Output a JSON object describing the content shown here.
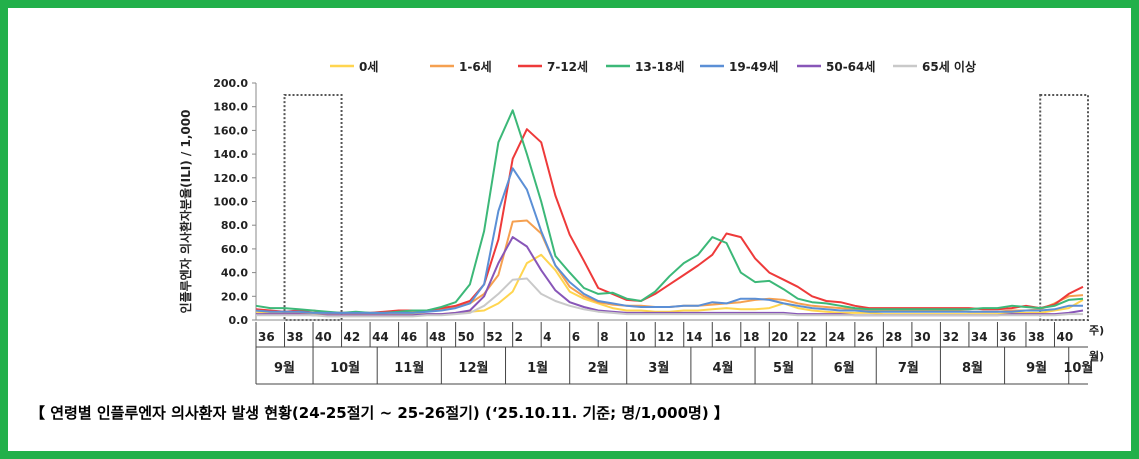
{
  "caption": "【 연령별 인플루엔자 의사환자 발생 현황(24-25절기 ~ 25-26절기) (‘25.10.11. 기준; 명/1,000명) 】",
  "chart_data": {
    "type": "line",
    "ylabel": "인플루엔자 의사환자분율(ILI) / 1,000",
    "ylim": [
      0,
      200
    ],
    "yticks": [
      "0.0",
      "20.0",
      "40.0",
      "60.0",
      "80.0",
      "100.0",
      "120.0",
      "140.0",
      "160.0",
      "180.0",
      "200.0"
    ],
    "x_unit_week": "주)",
    "x_unit_month": "월)",
    "week_ticks": [
      "36",
      "38",
      "40",
      "42",
      "44",
      "46",
      "48",
      "50",
      "52",
      "2",
      "4",
      "6",
      "8",
      "10",
      "12",
      "14",
      "16",
      "18",
      "20",
      "22",
      "24",
      "26",
      "28",
      "30",
      "32",
      "34",
      "36",
      "38",
      "40"
    ],
    "months": [
      "9월",
      "10월",
      "11월",
      "12월",
      "1월",
      "2월",
      "3월",
      "4월",
      "5월",
      "6월",
      "7월",
      "8월",
      "9월",
      "10월"
    ],
    "month_spans": [
      [
        0,
        4
      ],
      [
        4,
        8.5
      ],
      [
        8.5,
        13
      ],
      [
        13,
        17.5
      ],
      [
        17.5,
        22
      ],
      [
        22,
        26
      ],
      [
        26,
        30.5
      ],
      [
        30.5,
        35
      ],
      [
        35,
        39
      ],
      [
        39,
        43.5
      ],
      [
        43.5,
        48
      ],
      [
        48,
        52.5
      ],
      [
        52.5,
        57
      ],
      [
        57,
        59
      ]
    ],
    "week_count": 59,
    "highlight_ranges": [
      [
        2,
        6
      ],
      [
        55,
        59
      ]
    ],
    "legend_position": "top",
    "series": [
      {
        "name": "0세",
        "color": "#ffd54f",
        "values": [
          7,
          6,
          6,
          6,
          5,
          5,
          4,
          5,
          5,
          5,
          5,
          5,
          5,
          5,
          6,
          7,
          8,
          14,
          24,
          48,
          55,
          42,
          24,
          18,
          14,
          10,
          8,
          8,
          7,
          7,
          8,
          8,
          9,
          10,
          9,
          9,
          10,
          14,
          10,
          8,
          7,
          6,
          6,
          6,
          5,
          5,
          5,
          5,
          5,
          5,
          5,
          5,
          5,
          6,
          6,
          6,
          8,
          10,
          17
        ]
      },
      {
        "name": "1-6세",
        "color": "#f5a050",
        "values": [
          8,
          7,
          7,
          6,
          6,
          6,
          6,
          6,
          6,
          6,
          7,
          7,
          8,
          9,
          11,
          14,
          22,
          38,
          83,
          84,
          73,
          46,
          28,
          20,
          15,
          13,
          12,
          12,
          11,
          11,
          12,
          12,
          13,
          14,
          15,
          17,
          18,
          17,
          14,
          12,
          11,
          10,
          9,
          8,
          8,
          8,
          8,
          8,
          8,
          8,
          7,
          7,
          7,
          8,
          8,
          9,
          14,
          20,
          21
        ]
      },
      {
        "name": "7-12세",
        "color": "#ee3a3a",
        "values": [
          9,
          8,
          7,
          8,
          8,
          6,
          6,
          6,
          6,
          7,
          8,
          8,
          8,
          10,
          12,
          16,
          30,
          68,
          136,
          161,
          150,
          105,
          72,
          50,
          27,
          22,
          17,
          16,
          22,
          30,
          38,
          46,
          55,
          73,
          70,
          52,
          40,
          34,
          28,
          20,
          16,
          15,
          12,
          10,
          10,
          10,
          10,
          10,
          10,
          10,
          10,
          9,
          9,
          10,
          12,
          10,
          13,
          22,
          28
        ]
      },
      {
        "name": "13-18세",
        "color": "#3cb878",
        "values": [
          12,
          10,
          10,
          9,
          8,
          7,
          6,
          7,
          6,
          6,
          7,
          8,
          8,
          11,
          15,
          30,
          75,
          150,
          177,
          140,
          100,
          54,
          40,
          27,
          22,
          23,
          18,
          16,
          24,
          37,
          48,
          55,
          70,
          65,
          40,
          32,
          33,
          26,
          18,
          15,
          14,
          12,
          10,
          9,
          9,
          9,
          9,
          9,
          9,
          9,
          9,
          10,
          10,
          12,
          11,
          10,
          12,
          17,
          18
        ]
      },
      {
        "name": "19-49세",
        "color": "#5b8fd6",
        "values": [
          8,
          7,
          7,
          7,
          6,
          6,
          6,
          6,
          6,
          6,
          6,
          6,
          7,
          8,
          10,
          14,
          30,
          92,
          128,
          110,
          75,
          46,
          32,
          22,
          16,
          14,
          12,
          11,
          11,
          11,
          12,
          12,
          15,
          14,
          18,
          18,
          17,
          14,
          12,
          10,
          9,
          8,
          8,
          7,
          7,
          7,
          7,
          7,
          7,
          7,
          7,
          7,
          7,
          7,
          8,
          8,
          9,
          12,
          12
        ]
      },
      {
        "name": "50-64세",
        "color": "#8856b8",
        "values": [
          5,
          5,
          5,
          5,
          4,
          4,
          4,
          4,
          4,
          4,
          4,
          4,
          5,
          5,
          6,
          8,
          20,
          48,
          70,
          62,
          42,
          25,
          15,
          11,
          8,
          7,
          6,
          6,
          6,
          6,
          6,
          6,
          6,
          6,
          6,
          6,
          6,
          6,
          5,
          5,
          5,
          5,
          4,
          4,
          4,
          4,
          4,
          4,
          4,
          4,
          4,
          4,
          4,
          5,
          5,
          5,
          5,
          6,
          8
        ]
      },
      {
        "name": "65세 이상",
        "color": "#c9c9c9",
        "values": [
          4,
          4,
          4,
          4,
          4,
          3,
          3,
          3,
          3,
          3,
          3,
          3,
          4,
          4,
          5,
          6,
          12,
          22,
          34,
          35,
          22,
          16,
          12,
          9,
          7,
          6,
          5,
          5,
          5,
          5,
          5,
          5,
          5,
          5,
          5,
          5,
          5,
          5,
          4,
          4,
          4,
          4,
          4,
          4,
          4,
          4,
          4,
          4,
          4,
          4,
          4,
          4,
          4,
          4,
          4,
          4,
          4,
          5,
          5
        ]
      }
    ]
  }
}
